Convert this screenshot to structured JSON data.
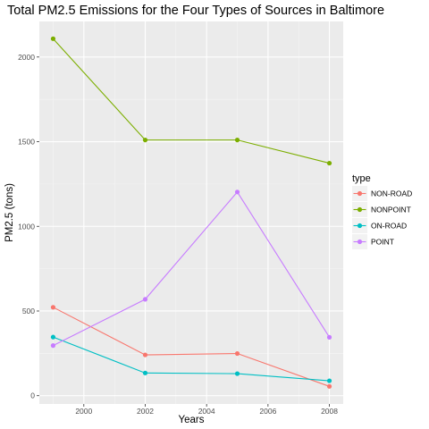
{
  "chart_data": {
    "type": "line",
    "title": "Total PM2.5 Emissions for the Four Types of Sources in Baltimore",
    "xlabel": "Years",
    "ylabel": "PM2.5 (tons)",
    "x": [
      1999,
      2002,
      2005,
      2008
    ],
    "xlim": [
      1998.55,
      2008.45
    ],
    "ylim": [
      -49,
      2210
    ],
    "x_ticks": [
      2000,
      2002,
      2004,
      2006,
      2008
    ],
    "y_ticks": [
      0,
      500,
      1000,
      1500,
      2000
    ],
    "grid": true,
    "legend_position": "right",
    "legend_title": "type",
    "series": [
      {
        "name": "NON-ROAD",
        "color": "#f8766d",
        "values": [
          522,
          241,
          249,
          55
        ]
      },
      {
        "name": "NONPOINT",
        "color": "#7cae00",
        "values": [
          2108,
          1510,
          1510,
          1373
        ]
      },
      {
        "name": "ON-ROAD",
        "color": "#00bfc4",
        "values": [
          346,
          134,
          130,
          88
        ]
      },
      {
        "name": "POINT",
        "color": "#c77cff",
        "values": [
          296,
          569,
          1203,
          345
        ]
      }
    ]
  }
}
